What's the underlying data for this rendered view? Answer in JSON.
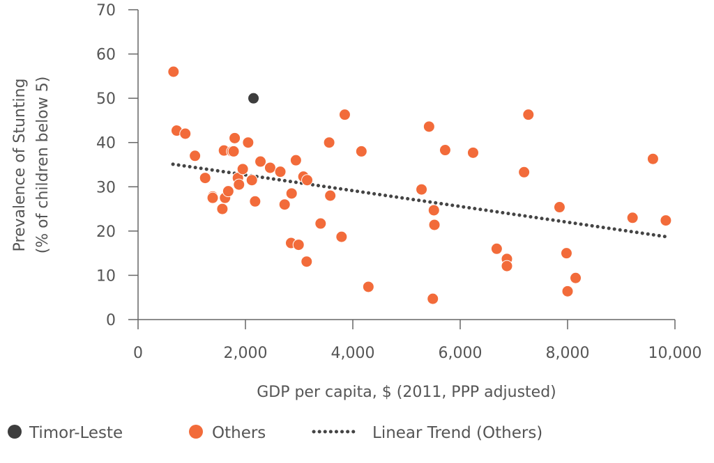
{
  "colors": {
    "timor_leste": "#3d3d3d",
    "others": "#f26b3a",
    "others_stroke": "#ffffff",
    "trend": "#444444",
    "axis": "#666666",
    "text": "#555555"
  },
  "chart_data": {
    "type": "scatter",
    "xlabel": "GDP per capita, $ (2011, PPP adjusted)",
    "ylabel": "Prevalence of Stunting",
    "ylabel_sub": "(% of children below 5)",
    "xlim": [
      0,
      10000
    ],
    "ylim": [
      0,
      70
    ],
    "x_ticks": [
      0,
      2000,
      4000,
      6000,
      8000,
      10000
    ],
    "x_tick_labels": [
      "0",
      "2,000",
      "4,000",
      "6,000",
      "8,000",
      "10,000"
    ],
    "y_ticks": [
      0,
      10,
      20,
      30,
      40,
      50,
      60,
      70
    ],
    "y_tick_labels": [
      "0",
      "10",
      "20",
      "30",
      "40",
      "50",
      "60",
      "70"
    ],
    "grid": false,
    "legend_position": "bottom-left",
    "series": [
      {
        "name": "Timor-Leste",
        "color": "#3d3d3d",
        "points": [
          [
            2150,
            50
          ]
        ]
      },
      {
        "name": "Others",
        "color": "#f26b3a",
        "points": [
          [
            660,
            56
          ],
          [
            720,
            42.7
          ],
          [
            880,
            42
          ],
          [
            1060,
            37
          ],
          [
            1250,
            32
          ],
          [
            1390,
            27.8
          ],
          [
            1390,
            27.5
          ],
          [
            1570,
            25
          ],
          [
            1600,
            38.2
          ],
          [
            1620,
            27.5
          ],
          [
            1680,
            29
          ],
          [
            1750,
            38
          ],
          [
            1780,
            38
          ],
          [
            1800,
            41
          ],
          [
            1860,
            32
          ],
          [
            1880,
            30.5
          ],
          [
            1950,
            34
          ],
          [
            2050,
            40
          ],
          [
            2120,
            31.5
          ],
          [
            2180,
            26.7
          ],
          [
            2280,
            35.7
          ],
          [
            2460,
            34.3
          ],
          [
            2650,
            33.4
          ],
          [
            2730,
            26
          ],
          [
            2850,
            17.3
          ],
          [
            2860,
            28.5
          ],
          [
            2940,
            36
          ],
          [
            2990,
            16.9
          ],
          [
            3080,
            32.3
          ],
          [
            3140,
            13.1
          ],
          [
            3150,
            31.5
          ],
          [
            3400,
            21.7
          ],
          [
            3560,
            40
          ],
          [
            3580,
            28
          ],
          [
            3790,
            18.7
          ],
          [
            3850,
            46.3
          ],
          [
            4160,
            38
          ],
          [
            4290,
            7.4
          ],
          [
            5280,
            29.4
          ],
          [
            5420,
            43.6
          ],
          [
            5490,
            4.7
          ],
          [
            5510,
            24.7
          ],
          [
            5520,
            21.4
          ],
          [
            5720,
            38.3
          ],
          [
            6240,
            37.7
          ],
          [
            6680,
            16
          ],
          [
            6870,
            13.7
          ],
          [
            6870,
            12.1
          ],
          [
            7190,
            33.3
          ],
          [
            7270,
            46.3
          ],
          [
            7850,
            25.4
          ],
          [
            7980,
            15
          ],
          [
            8000,
            6.4
          ],
          [
            8150,
            9.4
          ],
          [
            9210,
            23
          ],
          [
            9590,
            36.3
          ],
          [
            9830,
            22.4
          ]
        ]
      }
    ],
    "trend": {
      "name": "Linear Trend (Others)",
      "x0": 650,
      "y0": 35.1,
      "x1": 9850,
      "y1": 18.7
    }
  }
}
